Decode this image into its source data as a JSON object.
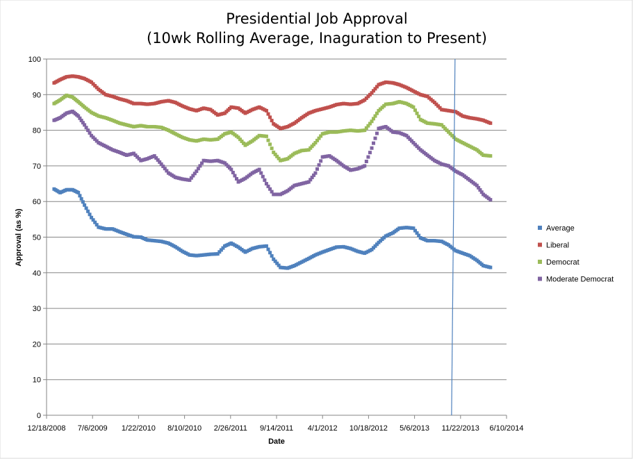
{
  "chart_data": {
    "type": "scatter",
    "title_line1": "Presidential Job Approval",
    "title_line2": "(10wk Rolling Average, Inaguration to Present)",
    "xlabel": "Date",
    "ylabel": "Approval (as %)",
    "ylim": [
      0,
      100
    ],
    "yticks": [
      0,
      10,
      20,
      30,
      40,
      50,
      60,
      70,
      80,
      90,
      100
    ],
    "xlim": [
      "2008-12-18",
      "2014-06-10"
    ],
    "xtick_labels": [
      "12/18/2008",
      "7/6/2009",
      "1/22/2010",
      "8/10/2010",
      "2/26/2011",
      "9/14/2011",
      "4/1/2012",
      "10/18/2012",
      "5/6/2013",
      "11/22/2013",
      "6/10/2014"
    ],
    "grid": true,
    "legend_position": "right",
    "vline_date": "2013-10-20",
    "vline_color": "#4F81BD",
    "series": [
      {
        "name": "Average",
        "color": "#4F81BD",
        "x": [
          "2009-01-20",
          "2009-02-15",
          "2009-03-15",
          "2009-04-10",
          "2009-05-05",
          "2009-06-01",
          "2009-07-01",
          "2009-08-01",
          "2009-09-01",
          "2009-10-01",
          "2009-11-01",
          "2009-12-01",
          "2010-01-01",
          "2010-02-01",
          "2010-03-01",
          "2010-04-01",
          "2010-05-01",
          "2010-06-01",
          "2010-07-01",
          "2010-08-01",
          "2010-09-01",
          "2010-10-01",
          "2010-11-01",
          "2010-12-01",
          "2011-01-01",
          "2011-02-01",
          "2011-03-01",
          "2011-04-01",
          "2011-05-01",
          "2011-06-01",
          "2011-07-01",
          "2011-08-01",
          "2011-09-01",
          "2011-10-01",
          "2011-11-01",
          "2011-12-01",
          "2012-01-01",
          "2012-02-01",
          "2012-03-01",
          "2012-04-01",
          "2012-05-01",
          "2012-06-01",
          "2012-07-01",
          "2012-08-01",
          "2012-09-01",
          "2012-10-01",
          "2012-11-01",
          "2012-12-01",
          "2013-01-01",
          "2013-02-01",
          "2013-03-01",
          "2013-04-01",
          "2013-05-01",
          "2013-06-01",
          "2013-07-01",
          "2013-08-01",
          "2013-09-01",
          "2013-10-01",
          "2013-11-01",
          "2013-12-01",
          "2014-01-01",
          "2014-02-01",
          "2014-03-01",
          "2014-04-01"
        ],
        "y": [
          63.5,
          62.5,
          63.3,
          63.3,
          62.5,
          59.0,
          55.5,
          52.8,
          52.3,
          52.3,
          51.5,
          50.8,
          50.1,
          50.0,
          49.2,
          49.0,
          48.8,
          48.3,
          47.3,
          46.0,
          45.0,
          44.8,
          45.0,
          45.2,
          45.3,
          47.5,
          48.3,
          47.2,
          45.8,
          46.8,
          47.3,
          47.5,
          43.8,
          41.5,
          41.3,
          42.0,
          43.0,
          44.0,
          45.0,
          45.8,
          46.5,
          47.2,
          47.3,
          46.8,
          46.0,
          45.5,
          46.5,
          48.5,
          50.3,
          51.2,
          52.5,
          52.7,
          52.5,
          49.8,
          49.0,
          49.0,
          48.8,
          47.8,
          46.2,
          45.5,
          44.8,
          43.5,
          42.0,
          41.5
        ]
      },
      {
        "name": "Liberal",
        "color": "#C0504D",
        "x": [
          "2009-01-20",
          "2009-02-15",
          "2009-03-15",
          "2009-04-10",
          "2009-05-05",
          "2009-06-01",
          "2009-07-01",
          "2009-08-01",
          "2009-09-01",
          "2009-10-01",
          "2009-11-01",
          "2009-12-01",
          "2010-01-01",
          "2010-02-01",
          "2010-03-01",
          "2010-04-01",
          "2010-05-01",
          "2010-06-01",
          "2010-07-01",
          "2010-08-01",
          "2010-09-01",
          "2010-10-01",
          "2010-11-01",
          "2010-12-01",
          "2011-01-01",
          "2011-02-01",
          "2011-03-01",
          "2011-04-01",
          "2011-05-01",
          "2011-06-01",
          "2011-07-01",
          "2011-08-01",
          "2011-09-01",
          "2011-10-01",
          "2011-11-01",
          "2011-12-01",
          "2012-01-01",
          "2012-02-01",
          "2012-03-01",
          "2012-04-01",
          "2012-05-01",
          "2012-06-01",
          "2012-07-01",
          "2012-08-01",
          "2012-09-01",
          "2012-10-01",
          "2012-11-01",
          "2012-12-01",
          "2013-01-01",
          "2013-02-01",
          "2013-03-01",
          "2013-04-01",
          "2013-05-01",
          "2013-06-01",
          "2013-07-01",
          "2013-08-01",
          "2013-09-01",
          "2013-10-01",
          "2013-11-01",
          "2013-12-01",
          "2014-01-01",
          "2014-02-01",
          "2014-03-01",
          "2014-04-01"
        ],
        "y": [
          93.3,
          94.2,
          95.0,
          95.2,
          95.0,
          94.5,
          93.5,
          91.5,
          90.0,
          89.5,
          88.8,
          88.3,
          87.5,
          87.5,
          87.3,
          87.5,
          88.0,
          88.3,
          87.8,
          86.8,
          86.0,
          85.5,
          86.2,
          85.8,
          84.3,
          84.8,
          86.5,
          86.2,
          84.8,
          85.8,
          86.5,
          85.5,
          81.8,
          80.5,
          81.0,
          82.0,
          83.5,
          84.8,
          85.5,
          86.0,
          86.5,
          87.2,
          87.5,
          87.3,
          87.5,
          88.5,
          90.5,
          92.8,
          93.5,
          93.3,
          92.8,
          92.0,
          91.0,
          90.0,
          89.5,
          87.8,
          85.8,
          85.5,
          85.2,
          84.0,
          83.5,
          83.2,
          82.8,
          82.0
        ]
      },
      {
        "name": "Democrat",
        "color": "#9BBB59",
        "x": [
          "2009-01-20",
          "2009-02-15",
          "2009-03-15",
          "2009-04-10",
          "2009-05-05",
          "2009-06-01",
          "2009-07-01",
          "2009-08-01",
          "2009-09-01",
          "2009-10-01",
          "2009-11-01",
          "2009-12-01",
          "2010-01-01",
          "2010-02-01",
          "2010-03-01",
          "2010-04-01",
          "2010-05-01",
          "2010-06-01",
          "2010-07-01",
          "2010-08-01",
          "2010-09-01",
          "2010-10-01",
          "2010-11-01",
          "2010-12-01",
          "2011-01-01",
          "2011-02-01",
          "2011-03-01",
          "2011-04-01",
          "2011-05-01",
          "2011-06-01",
          "2011-07-01",
          "2011-08-01",
          "2011-09-01",
          "2011-10-01",
          "2011-11-01",
          "2011-12-01",
          "2012-01-01",
          "2012-02-01",
          "2012-03-01",
          "2012-04-01",
          "2012-05-01",
          "2012-06-01",
          "2012-07-01",
          "2012-08-01",
          "2012-09-01",
          "2012-10-01",
          "2012-11-01",
          "2012-12-01",
          "2013-01-01",
          "2013-02-01",
          "2013-03-01",
          "2013-04-01",
          "2013-05-01",
          "2013-06-01",
          "2013-07-01",
          "2013-08-01",
          "2013-09-01",
          "2013-10-01",
          "2013-11-01",
          "2013-12-01",
          "2014-01-01",
          "2014-02-01",
          "2014-03-01",
          "2014-04-01"
        ],
        "y": [
          87.5,
          88.5,
          89.8,
          89.3,
          88.0,
          86.5,
          85.0,
          84.0,
          83.5,
          82.8,
          82.0,
          81.5,
          81.0,
          81.3,
          81.0,
          81.0,
          80.8,
          80.0,
          79.0,
          78.0,
          77.3,
          77.0,
          77.5,
          77.3,
          77.5,
          79.0,
          79.5,
          78.0,
          75.8,
          77.0,
          78.5,
          78.3,
          73.8,
          71.5,
          72.0,
          73.5,
          74.3,
          74.5,
          76.5,
          79.0,
          79.5,
          79.5,
          79.8,
          80.0,
          79.8,
          80.0,
          82.5,
          85.5,
          87.3,
          87.5,
          88.0,
          87.5,
          86.5,
          83.0,
          82.0,
          81.8,
          81.5,
          79.5,
          77.5,
          76.5,
          75.5,
          74.5,
          73.0,
          72.8
        ]
      },
      {
        "name": "Moderate Democrat",
        "color": "#8064A2",
        "x": [
          "2009-01-20",
          "2009-02-15",
          "2009-03-15",
          "2009-04-10",
          "2009-05-05",
          "2009-06-01",
          "2009-07-01",
          "2009-08-01",
          "2009-09-01",
          "2009-10-01",
          "2009-11-01",
          "2009-12-01",
          "2010-01-01",
          "2010-02-01",
          "2010-03-01",
          "2010-04-01",
          "2010-05-01",
          "2010-06-01",
          "2010-07-01",
          "2010-08-01",
          "2010-09-01",
          "2010-10-01",
          "2010-11-01",
          "2010-12-01",
          "2011-01-01",
          "2011-02-01",
          "2011-03-01",
          "2011-04-01",
          "2011-05-01",
          "2011-06-01",
          "2011-07-01",
          "2011-08-01",
          "2011-09-01",
          "2011-10-01",
          "2011-11-01",
          "2011-12-01",
          "2012-01-01",
          "2012-02-01",
          "2012-03-01",
          "2012-04-01",
          "2012-05-01",
          "2012-06-01",
          "2012-07-01",
          "2012-08-01",
          "2012-09-01",
          "2012-10-01",
          "2012-11-01",
          "2012-12-01",
          "2013-01-01",
          "2013-02-01",
          "2013-03-01",
          "2013-04-01",
          "2013-05-01",
          "2013-06-01",
          "2013-07-01",
          "2013-08-01",
          "2013-09-01",
          "2013-10-01",
          "2013-11-01",
          "2013-12-01",
          "2014-01-01",
          "2014-02-01",
          "2014-03-01",
          "2014-04-01"
        ],
        "y": [
          82.8,
          83.5,
          84.8,
          85.3,
          84.0,
          81.5,
          78.5,
          76.5,
          75.5,
          74.5,
          73.8,
          73.0,
          73.5,
          71.5,
          72.0,
          72.8,
          70.5,
          68.0,
          66.8,
          66.3,
          66.0,
          68.5,
          71.5,
          71.3,
          71.5,
          70.8,
          69.0,
          65.5,
          66.5,
          68.0,
          69.0,
          65.0,
          62.0,
          62.0,
          63.0,
          64.5,
          65.0,
          65.5,
          68.0,
          72.5,
          72.8,
          71.5,
          70.0,
          68.8,
          69.2,
          70.0,
          75.0,
          80.5,
          81.0,
          79.5,
          79.3,
          78.5,
          76.5,
          74.5,
          73.0,
          71.5,
          70.5,
          70.0,
          68.5,
          67.5,
          66.0,
          64.5,
          62.0,
          60.5
        ]
      }
    ]
  }
}
